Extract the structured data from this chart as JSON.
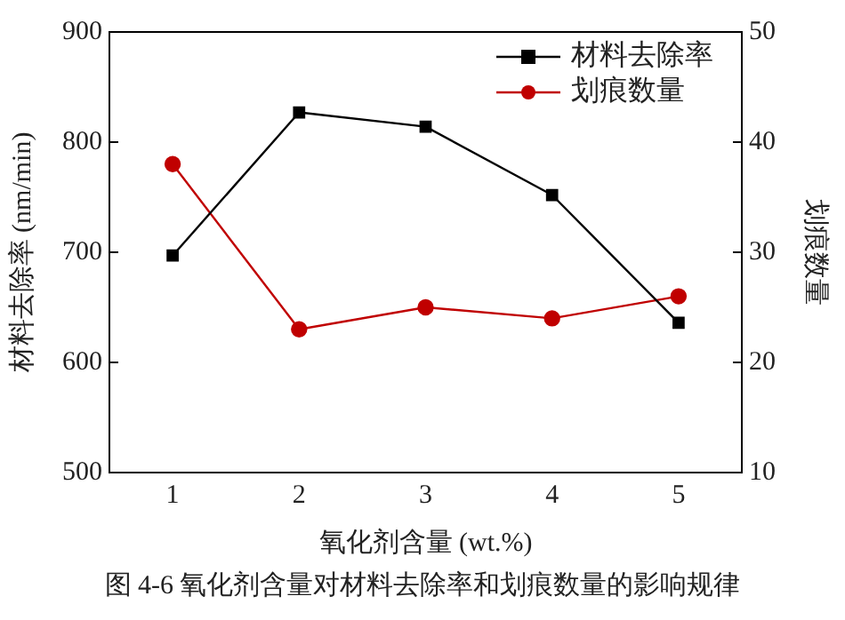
{
  "chart_data": {
    "type": "line",
    "xlabel": "氧化剂含量 (wt.%)",
    "ylabel": "材料去除率 (nm/min)",
    "y2label": "划痕数量",
    "x": [
      1,
      2,
      3,
      4,
      5
    ],
    "xlim": [
      0.5,
      5.5
    ],
    "xticks": [
      1,
      2,
      3,
      4,
      5
    ],
    "ylim": [
      500,
      900
    ],
    "yticks": [
      500,
      600,
      700,
      800,
      900
    ],
    "y2lim": [
      10,
      50
    ],
    "y2ticks": [
      10,
      20,
      30,
      40,
      50
    ],
    "series": [
      {
        "name": "材料去除率",
        "color": "#000000",
        "marker": "square",
        "values": [
          697,
          827,
          814,
          752,
          636
        ]
      },
      {
        "name": "划痕数量",
        "color": "#c00000",
        "marker": "circle",
        "axis": "y2",
        "values": [
          38,
          23,
          25,
          24,
          26
        ]
      }
    ],
    "legend": "top right",
    "grid": false,
    "annotations": [
      "图 4-6 氧化剂含量对材料去除率和划痕数量的影响规律"
    ]
  }
}
